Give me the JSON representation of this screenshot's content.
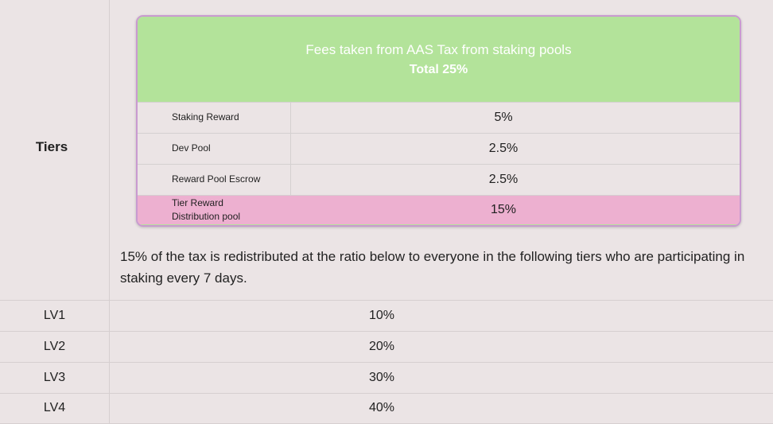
{
  "tiers_label": "Tiers",
  "fees_card": {
    "title": "Fees taken from AAS Tax from staking pools",
    "total": "Total 25%",
    "rows": [
      {
        "name": "Staking Reward",
        "value": "5%"
      },
      {
        "name": "Dev Pool",
        "value": "2.5%"
      },
      {
        "name": "Reward Pool Escrow",
        "value": "2.5%"
      },
      {
        "name": "Tier Reward Distribution pool",
        "value": "15%"
      }
    ],
    "colors": {
      "header": "#b3e39a",
      "highlight": "#edb0d0",
      "border": "#c99ad0"
    }
  },
  "description": "15% of the tax is redistributed at the ratio below to everyone in the following tiers who are participating in staking every 7 days.",
  "levels": [
    {
      "name": "LV1",
      "value": "10%"
    },
    {
      "name": "LV2",
      "value": "20%"
    },
    {
      "name": "LV3",
      "value": "30%"
    },
    {
      "name": "LV4",
      "value": "40%"
    }
  ]
}
